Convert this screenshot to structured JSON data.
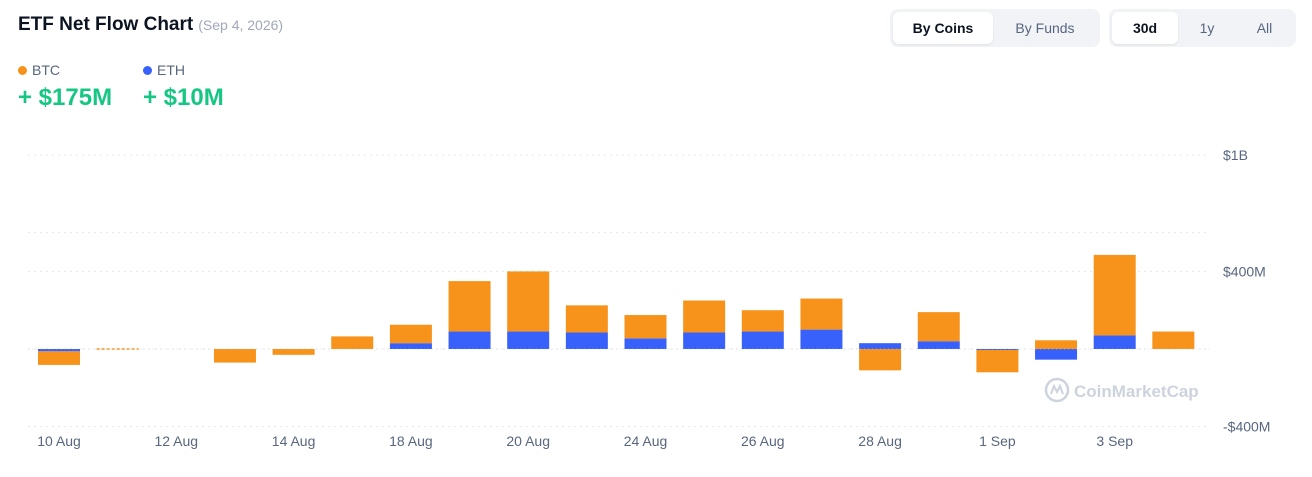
{
  "header": {
    "title": "ETF Net Flow Chart",
    "date": "(Sep 4, 2026)"
  },
  "view_toggle": {
    "options": [
      "By Coins",
      "By Funds"
    ],
    "selected": "By Coins"
  },
  "range_toggle": {
    "options": [
      "30d",
      "1y",
      "All"
    ],
    "selected": "30d"
  },
  "legend": [
    {
      "name": "BTC",
      "color": "#f7931a",
      "value": "+ $175M"
    },
    {
      "name": "ETH",
      "color": "#3861fb",
      "value": "+ $10M"
    }
  ],
  "watermark": "CoinMarketCap",
  "chart_data": {
    "type": "bar",
    "stacked": true,
    "categories": [
      "10 Aug",
      "11 Aug",
      "12 Aug",
      "13 Aug",
      "14 Aug",
      "17 Aug",
      "18 Aug",
      "19 Aug",
      "20 Aug",
      "21 Aug",
      "24 Aug",
      "25 Aug",
      "26 Aug",
      "27 Aug",
      "28 Aug",
      "31 Aug",
      "1 Sep",
      "2 Sep",
      "3 Sep",
      "4 Sep"
    ],
    "x_tick_labels": [
      "10 Aug",
      "12 Aug",
      "14 Aug",
      "18 Aug",
      "20 Aug",
      "24 Aug",
      "26 Aug",
      "28 Aug",
      "1 Sep",
      "3 Sep"
    ],
    "x_tick_indices": [
      0,
      2,
      4,
      6,
      8,
      10,
      12,
      14,
      16,
      18
    ],
    "series": [
      {
        "name": "BTC",
        "color": "#f7931a",
        "values": [
          -70,
          0,
          null,
          -70,
          -30,
          65,
          95,
          260,
          310,
          140,
          120,
          165,
          110,
          160,
          -110,
          150,
          -115,
          45,
          415,
          90
        ]
      },
      {
        "name": "ETH",
        "color": "#3861fb",
        "values": [
          -12,
          0,
          null,
          0,
          0,
          0,
          30,
          90,
          90,
          85,
          55,
          85,
          90,
          100,
          30,
          40,
          -5,
          -55,
          70,
          0
        ]
      }
    ],
    "ylim": [
      -400,
      1000
    ],
    "y_ticks": [
      {
        "value": 1000,
        "label": "$1B"
      },
      {
        "value": 400,
        "label": "$400M"
      },
      {
        "value": -400,
        "label": "-$400M"
      }
    ],
    "gridlines_at": [
      1000,
      600,
      400,
      0,
      -400
    ],
    "grid": true,
    "legend_position": "top-left"
  }
}
